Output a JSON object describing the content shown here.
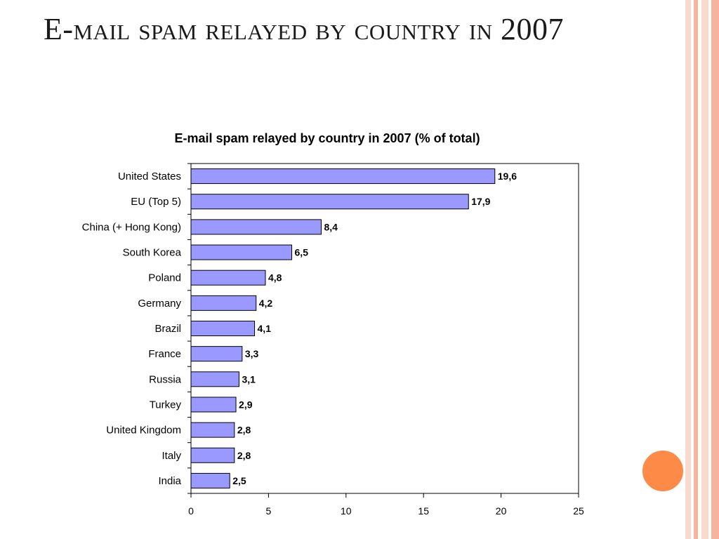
{
  "slide": {
    "title": "E-mail spam relayed by country in 2007"
  },
  "colors": {
    "bar_fill": "#9999ff",
    "bar_stroke": "#000000",
    "accent_dot": "#fd8a47",
    "stripe_light": "#fbd9cc",
    "stripe_mid": "#f6b39d"
  },
  "chart_data": {
    "type": "bar",
    "orientation": "horizontal",
    "title": "E-mail spam relayed by country in 2007 (% of total)",
    "categories": [
      "United States",
      "EU (Top 5)",
      "China (+ Hong Kong)",
      "South Korea",
      "Poland",
      "Germany",
      "Brazil",
      "France",
      "Russia",
      "Turkey",
      "United Kingdom",
      "Italy",
      "India"
    ],
    "values": [
      19.6,
      17.9,
      8.4,
      6.5,
      4.8,
      4.2,
      4.1,
      3.3,
      3.1,
      2.9,
      2.8,
      2.8,
      2.5
    ],
    "value_labels": [
      "19,6",
      "17,9",
      "8,4",
      "6,5",
      "4,8",
      "4,2",
      "4,1",
      "3,3",
      "3,1",
      "2,9",
      "2,8",
      "2,8",
      "2,5"
    ],
    "xlim": [
      0,
      25
    ],
    "xticks": [
      0,
      5,
      10,
      15,
      20,
      25
    ],
    "xlabel": "",
    "ylabel": "",
    "grid": false,
    "legend": "none"
  }
}
